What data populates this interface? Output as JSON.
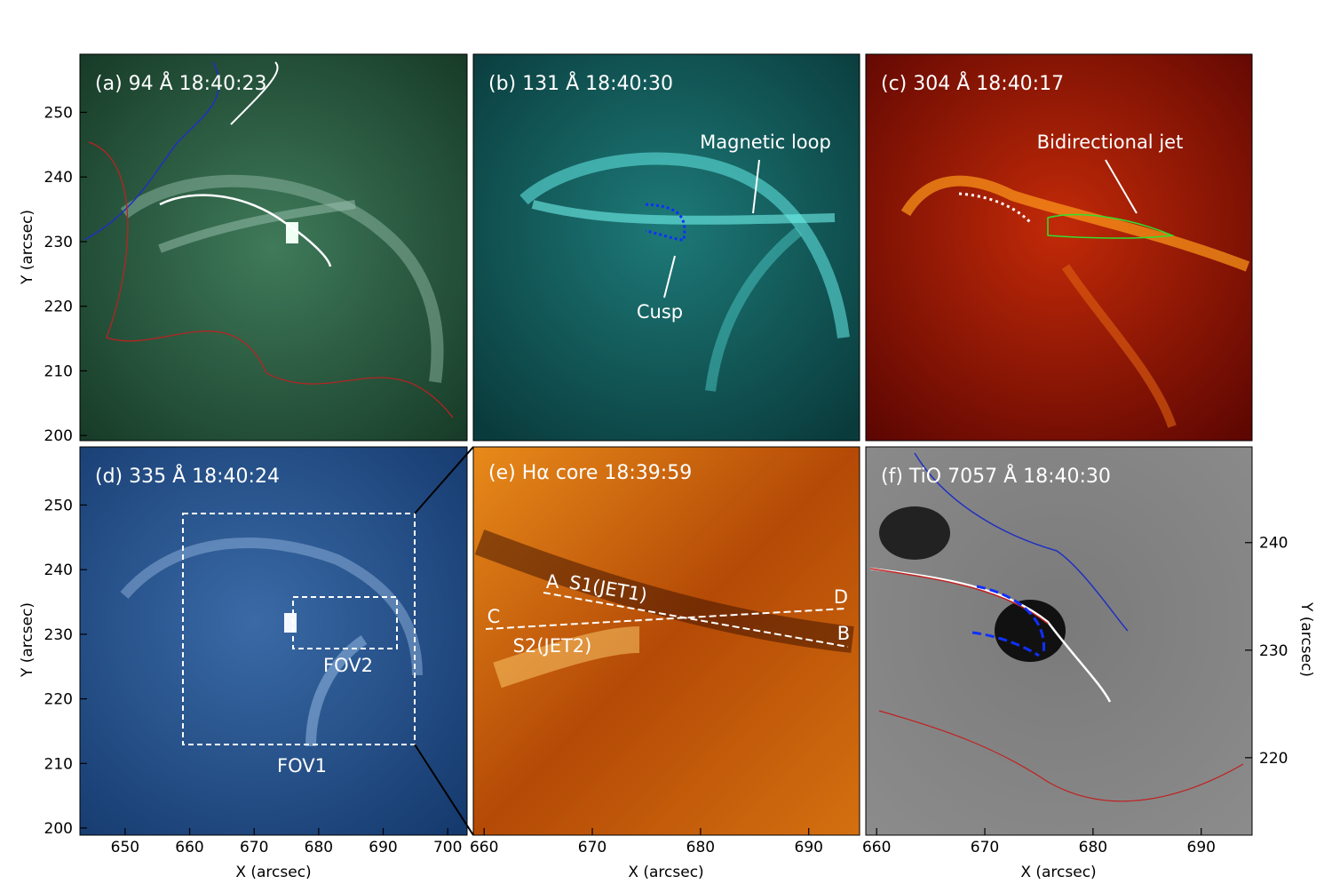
{
  "panels": [
    {
      "label": "(a) 94 Å 18:40:23",
      "annotations": []
    },
    {
      "label": "(b) 131 Å 18:40:30",
      "annotations": [
        "Magnetic loop",
        "Cusp"
      ]
    },
    {
      "label": "(c) 304 Å 18:40:17",
      "annotations": [
        "Bidirectional jet"
      ]
    },
    {
      "label": "(d) 335 Å 18:40:24",
      "annotations": [
        "FOV2",
        "FOV1"
      ]
    },
    {
      "label": "(e) Hα core 18:39:59",
      "annotations": [
        "A",
        "S1(JET1)",
        "D",
        "C",
        "B",
        "S2(JET2)"
      ]
    },
    {
      "label": "(f) TiO 7057 Å 18:40:30",
      "annotations": []
    }
  ],
  "axes": {
    "y_top_left": {
      "label": "Y (arcsec)",
      "lim": [
        199.2,
        259
      ],
      "ticks": [
        200,
        210,
        220,
        230,
        240,
        250
      ]
    },
    "y_bottom_left": {
      "label": "Y (arcsec)",
      "lim": [
        198.9,
        259
      ],
      "ticks": [
        200,
        210,
        220,
        230,
        240,
        250
      ]
    },
    "x_left": {
      "label": "X (arcsec)",
      "lim": [
        643,
        703
      ],
      "ticks": [
        650,
        660,
        670,
        680,
        690,
        700
      ]
    },
    "x_middle": {
      "label": "X (arcsec)",
      "lim": [
        659,
        694.7
      ],
      "ticks": [
        660,
        670,
        680,
        690
      ]
    },
    "x_right": {
      "label": "X (arcsec)",
      "lim": [
        659,
        694.7
      ],
      "ticks": [
        660,
        670,
        680,
        690
      ]
    },
    "y_right": {
      "label": "Y (arcsec)",
      "lim": [
        212.8,
        248.9
      ],
      "ticks": [
        220,
        230,
        240
      ]
    }
  }
}
